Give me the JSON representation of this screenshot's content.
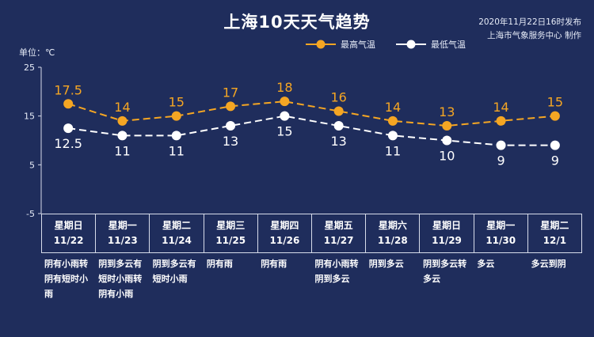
{
  "title": "上海10天天气趋势",
  "publish": {
    "line1": "2020年11月22日16时发布",
    "line2": "上海市气象服务中心 制作"
  },
  "unit_label": "单位：℃",
  "colors": {
    "high": "#f5a623",
    "low": "#ffffff",
    "background": "#1f2d5c"
  },
  "chart_data": {
    "type": "line",
    "categories": [
      "11/22",
      "11/23",
      "11/24",
      "11/25",
      "11/26",
      "11/27",
      "11/28",
      "11/29",
      "11/30",
      "12/1"
    ],
    "ylabel": "单位：℃",
    "ylim": [
      -5,
      25
    ],
    "yticks": [
      25,
      15,
      5,
      -5
    ],
    "legend_position": "top-center",
    "series": [
      {
        "name": "最高气温",
        "values": [
          17.5,
          14,
          15,
          17,
          18,
          16,
          14,
          13,
          14,
          15
        ],
        "labels": [
          "17.5",
          "14",
          "15",
          "17",
          "18",
          "16",
          "14",
          "13",
          "14",
          "15"
        ]
      },
      {
        "name": "最低气温",
        "values": [
          12.5,
          11,
          11,
          13,
          15,
          13,
          11,
          10,
          9,
          9
        ],
        "labels": [
          "12.5",
          "11",
          "11",
          "13",
          "15",
          "13",
          "11",
          "10",
          "9",
          "9"
        ]
      }
    ]
  },
  "days": [
    {
      "weekday": "星期日",
      "date": "11/22",
      "weather": "阴有小雨转阴有短时小雨"
    },
    {
      "weekday": "星期一",
      "date": "11/23",
      "weather": "阴到多云有短时小雨转阴有小雨"
    },
    {
      "weekday": "星期二",
      "date": "11/24",
      "weather": "阴到多云有短时小雨"
    },
    {
      "weekday": "星期三",
      "date": "11/25",
      "weather": "阴有雨"
    },
    {
      "weekday": "星期四",
      "date": "11/26",
      "weather": "阴有雨"
    },
    {
      "weekday": "星期五",
      "date": "11/27",
      "weather": "阴有小雨转阴到多云"
    },
    {
      "weekday": "星期六",
      "date": "11/28",
      "weather": "阴到多云"
    },
    {
      "weekday": "星期日",
      "date": "11/29",
      "weather": "阴到多云转多云"
    },
    {
      "weekday": "星期一",
      "date": "11/30",
      "weather": "多云"
    },
    {
      "weekday": "星期二",
      "date": "12/1",
      "weather": "多云到阴"
    }
  ]
}
